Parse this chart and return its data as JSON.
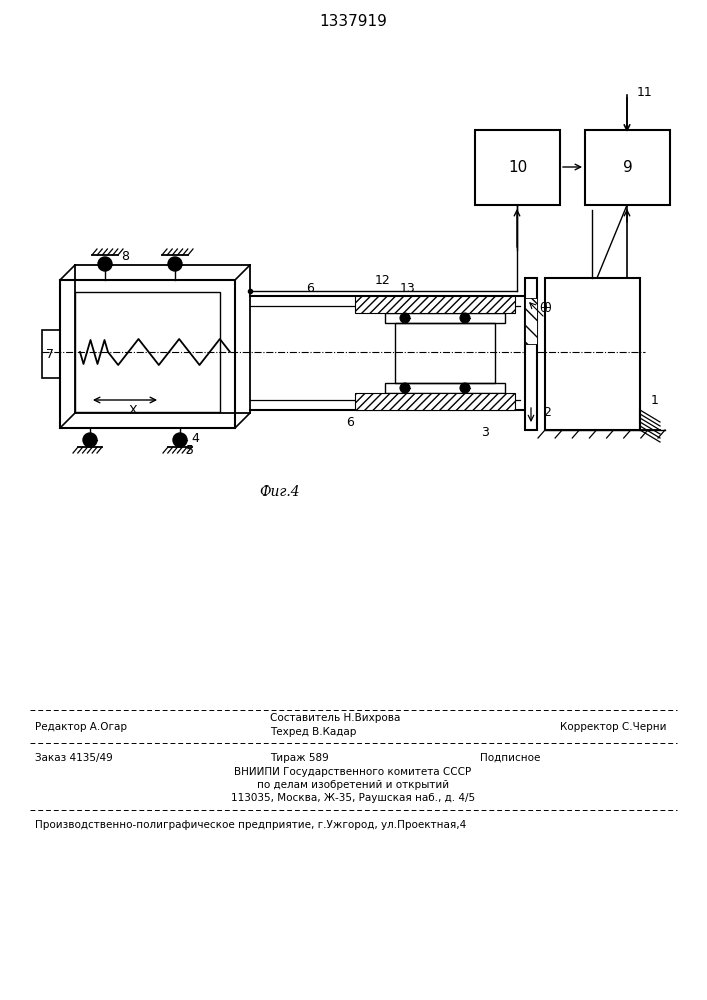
{
  "title": "1337919",
  "fig_caption": "Фиг.4",
  "bg_color": "#ffffff",
  "line_color": "#000000",
  "footer": {
    "editor": "Редактор А.Огар",
    "sostavitel": "Составитель Н.Вихрова",
    "tehred": "Техред В.Кадар",
    "korrektor": "Корректор С.Черни",
    "zakaz": "Заказ 4135/49",
    "tirazh": "Тираж 589",
    "podpisnoe": "Подписное",
    "vniipil1": "ВНИИПИ Государственного комитета СССР",
    "vniipil2": "по делам изобретений и открытий",
    "vniipil3": "113035, Москва, Ж-35, Раушская наб., д. 4/5",
    "printer": "Производственно-полиграфическое предприятие, г.Ужгород, ул.Проектная,4"
  }
}
